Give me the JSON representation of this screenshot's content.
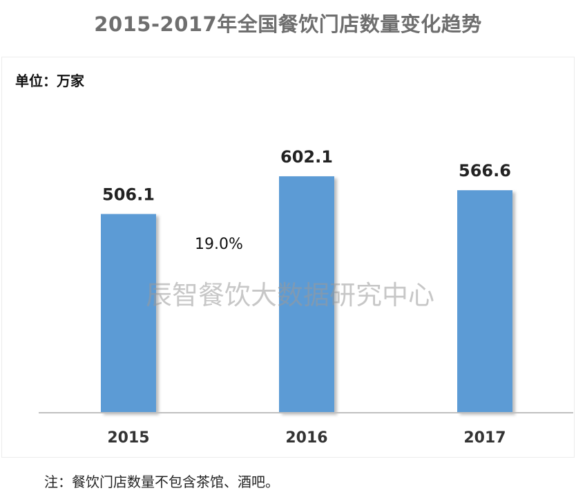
{
  "title": "2015-2017年全国餐饮门店数量变化趋势",
  "unit_label": "单位：万家",
  "note": "注：餐饮门店数量不包含茶馆、酒吧。",
  "watermark": "辰智餐饮大数据研究中心",
  "chart_data": {
    "type": "bar",
    "title": "2015-2017年全国餐饮门店数量变化趋势",
    "ylabel": "单位：万家",
    "categories": [
      "2015",
      "2016",
      "2017"
    ],
    "values": [
      506.1,
      602.1,
      566.6
    ],
    "value_labels": [
      "506.1",
      "602.1",
      "566.6"
    ],
    "annotations": [
      {
        "text": "19.0%",
        "between": [
          "2015",
          "2016"
        ]
      }
    ],
    "ylim": [
      0,
      700
    ],
    "grid": false,
    "legend": "none",
    "bar_color": "#5b9bd5"
  }
}
